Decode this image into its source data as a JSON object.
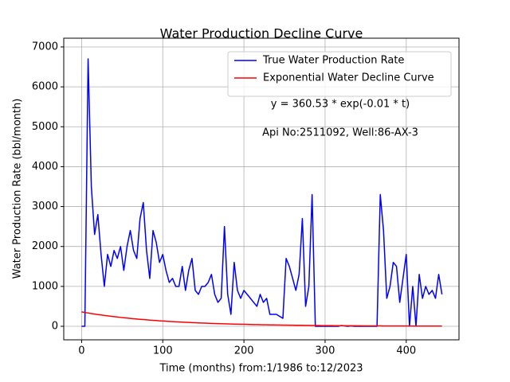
{
  "chart_data": {
    "type": "line",
    "title": "Water Production Decline Curve",
    "xlabel": "Time (months) from:1/1986 to:12/2023",
    "ylabel": "Water Production Rate (bbl/month)",
    "annotations": [
      "y = 360.53 * exp(-0.01 * t)",
      "Api No:2511092, Well:86-AX-3"
    ],
    "x": [
      0,
      4,
      8,
      12,
      16,
      20,
      24,
      28,
      32,
      36,
      40,
      44,
      48,
      52,
      56,
      60,
      64,
      68,
      72,
      76,
      80,
      84,
      88,
      92,
      96,
      100,
      104,
      108,
      112,
      116,
      120,
      124,
      128,
      132,
      136,
      140,
      144,
      148,
      152,
      156,
      160,
      164,
      168,
      172,
      176,
      180,
      184,
      188,
      192,
      196,
      200,
      204,
      208,
      212,
      216,
      220,
      224,
      228,
      232,
      236,
      240,
      244,
      248,
      252,
      256,
      260,
      264,
      268,
      272,
      276,
      280,
      284,
      288,
      292,
      296,
      300,
      304,
      308,
      312,
      316,
      320,
      324,
      328,
      332,
      336,
      340,
      344,
      348,
      352,
      356,
      360,
      364,
      368,
      372,
      376,
      380,
      384,
      388,
      392,
      396,
      400,
      404,
      408,
      412,
      416,
      420,
      424,
      428,
      432,
      436,
      440,
      444
    ],
    "series": [
      {
        "name": "True Water Production Rate",
        "color": "#0000ff",
        "values": [
          0,
          0,
          6700,
          3500,
          2300,
          2800,
          1800,
          1000,
          1800,
          1500,
          1900,
          1700,
          2000,
          1400,
          2000,
          2400,
          1900,
          1700,
          2700,
          3100,
          1900,
          1200,
          2400,
          2100,
          1600,
          1800,
          1400,
          1100,
          1200,
          1000,
          1000,
          1500,
          900,
          1400,
          1700,
          900,
          800,
          1000,
          1000,
          1100,
          1300,
          800,
          600,
          700,
          2500,
          800,
          300,
          1600,
          900,
          700,
          900,
          800,
          700,
          600,
          500,
          800,
          600,
          700,
          300,
          300,
          300,
          250,
          200,
          1700,
          1500,
          1200,
          900,
          1300,
          2700,
          500,
          1000,
          3300,
          0,
          0,
          0,
          0,
          0,
          0,
          0,
          0,
          20,
          10,
          0,
          10,
          0,
          0,
          0,
          0,
          0,
          0,
          0,
          0,
          3300,
          2400,
          700,
          1000,
          1600,
          1500,
          600,
          1200,
          1800,
          0,
          1000,
          0,
          1300,
          700,
          1000,
          800,
          900,
          700,
          1300,
          800
        ]
      },
      {
        "name": "Exponential Water Decline Curve",
        "color": "#ff0000",
        "values": [
          360.5,
          346.4,
          332.8,
          319.8,
          307.2,
          295.2,
          283.6,
          272.5,
          261.8,
          251.5,
          241.7,
          232.2,
          223.1,
          214.3,
          205.9,
          197.9,
          190.1,
          182.7,
          175.5,
          168.6,
          162.0,
          155.7,
          149.6,
          143.7,
          138.1,
          132.6,
          127.4,
          122.4,
          117.6,
          113.0,
          108.6,
          104.3,
          100.2,
          96.3,
          92.5,
          88.9,
          85.4,
          82.1,
          78.8,
          75.8,
          72.8,
          69.9,
          67.2,
          64.6,
          62.0,
          59.6,
          57.3,
          55.0,
          52.9,
          50.8,
          48.8,
          46.9,
          45.0,
          43.3,
          41.6,
          40.0,
          38.4,
          36.9,
          35.4,
          34.0,
          32.7,
          31.4,
          30.2,
          29.0,
          27.9,
          26.8,
          25.7,
          24.7,
          23.8,
          22.8,
          21.9,
          21.1,
          20.2,
          19.4,
          18.7,
          17.9,
          17.2,
          16.6,
          15.9,
          15.3,
          14.7,
          14.1,
          13.6,
          13.0,
          12.5,
          12.0,
          11.6,
          11.1,
          10.7,
          10.3,
          9.9,
          9.5,
          9.1,
          8.7,
          8.4,
          8.1,
          7.7,
          7.4,
          7.1,
          6.9,
          6.6,
          6.3,
          6.1,
          5.8,
          5.6,
          5.4,
          5.2,
          5.0,
          4.8,
          4.6,
          4.4,
          4.3
        ]
      }
    ],
    "xlim": [
      -22,
      465
    ],
    "ylim": [
      -339,
      7219
    ],
    "xticks": [
      0,
      100,
      200,
      300,
      400
    ],
    "yticks": [
      0,
      1000,
      2000,
      3000,
      4000,
      5000,
      6000,
      7000
    ],
    "grid": true,
    "legend": "upper right"
  }
}
